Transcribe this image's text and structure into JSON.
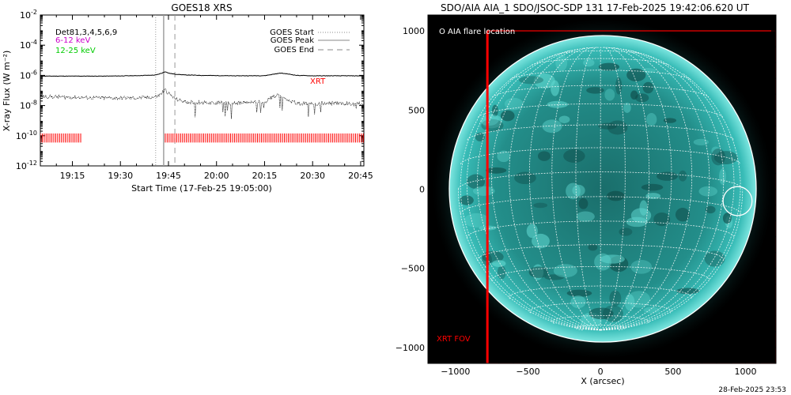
{
  "left_panel": {
    "title": "GOES18 XRS",
    "ylabel": "X-ray Flux (W m⁻²)",
    "xlabel": "Start Time (17-Feb-25 19:05:00)",
    "det_label": "Det81,3,4,5,6,9",
    "band_low": "6-12 keV",
    "band_high": "12-25 keV",
    "band_low_color": "#cc00cc",
    "band_high_color": "#00cc00",
    "legend": [
      {
        "label": "GOES Start",
        "style": "dotted"
      },
      {
        "label": "GOES Peak",
        "style": "solid"
      },
      {
        "label": "GOES End",
        "style": "dashed"
      }
    ],
    "xrt_label": "XRT",
    "xrt_color": "#ff0000"
  },
  "right_panel": {
    "title": "SDO/AIA AIA_1 SDO/JSOC-SDP 131 17-Feb-2025 19:42:06.620 UT",
    "xlabel": "X (arcsec)",
    "flare_label": "O AIA flare location",
    "fov_label": "XRT FOV",
    "fov_color": "#ff0000",
    "sun_color": "#2fb3b0"
  },
  "footer_timestamp": "28-Feb-2025 23:53",
  "chart_data": [
    {
      "type": "line",
      "title": "GOES18 XRS",
      "xlabel": "Start Time (17-Feb-25 19:05:00)",
      "ylabel": "X-ray Flux (W m⁻²)",
      "x_unit": "minutes since 19:05:00",
      "xlim": [
        0,
        101
      ],
      "x_ticks": [
        10,
        25,
        40,
        55,
        70,
        85,
        100
      ],
      "x_tick_labels": [
        "19:15",
        "19:30",
        "19:45",
        "20:00",
        "20:15",
        "20:30",
        "20:45"
      ],
      "ylim_log10": [
        -12,
        -2
      ],
      "y_ticks_log10": [
        -12,
        -10,
        -8,
        -6,
        -4,
        -2
      ],
      "y_scale": "log",
      "series": [
        {
          "name": "6-12 keV",
          "x": [
            0,
            10,
            20,
            30,
            36,
            38,
            39,
            40,
            42,
            45,
            50,
            60,
            70,
            72,
            75,
            77,
            80,
            85,
            90,
            101
          ],
          "log10_y": [
            -6.05,
            -6.05,
            -6.05,
            -6.02,
            -5.98,
            -5.85,
            -5.75,
            -5.85,
            -5.92,
            -5.97,
            -6.0,
            -6.03,
            -6.02,
            -5.95,
            -5.85,
            -5.9,
            -6.0,
            -6.03,
            -6.03,
            -6.03
          ]
        },
        {
          "name": "12-25 keV",
          "x": [
            0,
            10,
            20,
            30,
            35,
            37,
            38,
            39,
            40,
            42,
            45,
            50,
            60,
            70,
            72,
            74,
            75,
            77,
            80,
            85,
            90,
            101
          ],
          "log10_y": [
            -7.4,
            -7.45,
            -7.5,
            -7.5,
            -7.45,
            -7.35,
            -7.15,
            -6.95,
            -7.2,
            -7.55,
            -7.75,
            -7.8,
            -7.85,
            -7.75,
            -7.5,
            -7.3,
            -7.35,
            -7.6,
            -7.85,
            -7.9,
            -7.85,
            -7.9
          ]
        }
      ],
      "markers": {
        "goes_start": 36,
        "goes_peak": 38.5,
        "goes_end": 42
      },
      "xrt_coverage": [
        [
          0,
          13
        ],
        [
          39,
          101
        ]
      ]
    },
    {
      "type": "scatter",
      "title": "SDO/AIA AIA_1 SDO/JSOC-SDP 131 17-Feb-2025 19:42:06.620 UT",
      "xlabel": "X (arcsec)",
      "ylabel": "",
      "xlim": [
        -1190,
        1210
      ],
      "ylim": [
        -1100,
        1100
      ],
      "x_ticks": [
        -1000,
        -500,
        0,
        500,
        1000
      ],
      "y_ticks": [
        -1000,
        -500,
        0,
        500,
        1000
      ],
      "solar_radius": 980,
      "flare_location": {
        "x": 945,
        "y": -75
      },
      "xrt_fov": {
        "x_min": -780,
        "x_max": 1210,
        "y_min": -1100,
        "y_max": 1000
      }
    }
  ]
}
